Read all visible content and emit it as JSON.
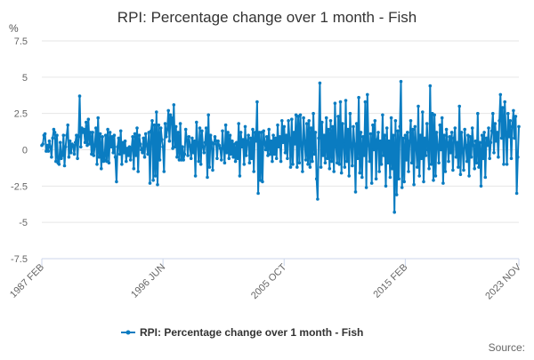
{
  "chart_data": {
    "type": "line",
    "title": "RPI: Percentage change over 1 month - Fish",
    "ylabel": "%",
    "xlabel": "",
    "ylim": [
      -7.5,
      7.5
    ],
    "yticks": [
      "7.5",
      "5",
      "2.5",
      "0",
      "-2.5",
      "-5",
      "-7.5"
    ],
    "xticks": [
      "1987 FEB",
      "1996 JUN",
      "2005 OCT",
      "2015 FEB",
      "2023 NOV"
    ],
    "x_start": "1987 FEB",
    "x_end": "2023 NOV",
    "frequency": "monthly",
    "grid": true,
    "legend_position": "bottom",
    "credit": "Source:",
    "colors": {
      "series": "#0a7cc1",
      "grid": "#e6e6e6",
      "text": "#333333"
    },
    "series": [
      {
        "name": "RPI: Percentage change over 1 month - Fish",
        "values": [
          0.3,
          0.4,
          1.0,
          1.1,
          -0.1,
          0.3,
          -0.1,
          0.6,
          0.2,
          -0.5,
          0.8,
          1.4,
          1.2,
          -0.8,
          1.0,
          -0.9,
          -1.0,
          0.5,
          -0.6,
          -0.4,
          1.0,
          -1.1,
          0.2,
          1.0,
          1.7,
          -0.5,
          0.6,
          -0.2,
          0.4,
          0.3,
          -0.3,
          0.5,
          1.0,
          -0.6,
          0.9,
          3.7,
          0.2,
          1.5,
          1.2,
          1.4,
          0.5,
          1.9,
          0.3,
          2.1,
          0.4,
          1.2,
          -0.3,
          1.2,
          -0.4,
          0.3,
          1.5,
          -1.0,
          2.2,
          -0.5,
          1.1,
          -1.3,
          0.9,
          -0.8,
          -0.7,
          1.0,
          -0.8,
          1.4,
          -0.9,
          1.2,
          0.2,
          0.9,
          -0.2,
          1.0,
          -0.5,
          -2.2,
          0.2,
          0.8,
          -0.3,
          1.3,
          -1.0,
          0.5,
          -0.2,
          0.6,
          -0.8,
          0.1,
          -0.4,
          0.2,
          -0.7,
          0.1,
          0.9,
          -1.3,
          1.1,
          -0.4,
          1.5,
          -1.5,
          1.0,
          0.4,
          0.0,
          -0.2,
          0.8,
          -0.5,
          1.1,
          0.3,
          -0.3,
          1.2,
          -2.3,
          1.3,
          2.0,
          -2.1,
          1.7,
          -1.8,
          2.6,
          -2.4,
          1.7,
          -0.7,
          1.5,
          0.7,
          0.2,
          -1.5,
          1.8,
          0.9,
          1.4,
          2.7,
          0.6,
          2.4,
          2.2,
          0.1,
          3.1,
          0.2,
          1.6,
          -0.5,
          1.2,
          -0.7,
          1.8,
          -0.7,
          0.2,
          -0.7,
          -0.3,
          1.4,
          0.7,
          -0.4,
          0.9,
          0.3,
          -0.6,
          0.8,
          -0.2,
          0.6,
          -1.8,
          1.9,
          0.5,
          -0.8,
          1.5,
          -1.0,
          1.3,
          0.2,
          -0.2,
          0.5,
          1.5,
          -1.9,
          2.4,
          -1.2,
          1.0,
          0.5,
          -1.4,
          0.4,
          0.9,
          0.6,
          -0.6,
          0.6,
          0.3,
          0.1,
          -0.7,
          1.3,
          0.1,
          -0.9,
          1.7,
          -0.2,
          1.2,
          -0.6,
          1.0,
          -0.3,
          0.6,
          -0.5,
          0.4,
          -0.8,
          0.5,
          -0.6,
          1.8,
          -1.8,
          1.2,
          0.2,
          0.7,
          -1.0,
          1.6,
          -0.4,
          0.6,
          1.0,
          -0.9,
          0.8,
          -0.6,
          1.4,
          -1.5,
          1.2,
          0.6,
          3.3,
          -3.0,
          1.2,
          -2.1,
          1.2,
          -2.2,
          1.3,
          0.5,
          0.0,
          0.9,
          -0.4,
          1.4,
          -0.3,
          0.6,
          -0.8,
          1.0,
          -0.3,
          0.8,
          -0.6,
          1.7,
          0.2,
          0.9,
          -0.8,
          2.0,
          0.5,
          1.6,
          -0.2,
          1.0,
          -0.6,
          2.0,
          0.8,
          -1.2,
          2.1,
          -1.0,
          1.2,
          0.4,
          2.4,
          -1.2,
          2.3,
          -0.9,
          2.4,
          0.3,
          -1.5,
          2.2,
          0.6,
          -0.7,
          1.8,
          -1.0,
          2.0,
          -1.2,
          1.5,
          -0.8,
          2.5,
          -0.3,
          1.2,
          -2.0,
          -3.4,
          0.8,
          4.6,
          -1.2,
          1.9,
          -0.4,
          1.0,
          -0.9,
          2.2,
          -0.6,
          1.4,
          -1.3,
          2.0,
          -0.8,
          1.6,
          -1.5,
          3.2,
          0.2,
          -0.9,
          2.3,
          -1.0,
          3.3,
          -1.6,
          1.8,
          0.4,
          -1.2,
          3.4,
          -0.8,
          1.4,
          -1.8,
          2.5,
          0.3,
          -1.1,
          1.6,
          0.4,
          -2.9,
          1.8,
          -0.6,
          3.6,
          -1.6,
          1.2,
          -1.9,
          0.9,
          -0.4,
          3.3,
          -2.6,
          3.8,
          0.3,
          -0.8,
          1.1,
          -2.3,
          1.7,
          0.0,
          2.0,
          -2.0,
          0.7,
          1.2,
          -1.5,
          0.6,
          -1.0,
          2.4,
          -0.4,
          1.0,
          -2.5,
          1.5,
          -0.9,
          0.6,
          -1.9,
          2.2,
          -1.3,
          1.0,
          -4.3,
          2.0,
          -3.1,
          1.3,
          -2.0,
          1.6,
          4.7,
          -2.6,
          0.8,
          -2.2,
          1.0,
          -0.7,
          1.2,
          -1.5,
          0.6,
          2.0,
          -0.9,
          1.4,
          -2.4,
          1.6,
          0.3,
          -1.2,
          3.0,
          -1.8,
          1.0,
          -0.6,
          2.6,
          -2.2,
          0.8,
          -0.4,
          1.8,
          0.0,
          -1.3,
          4.4,
          -1.0,
          2.5,
          -2.1,
          2.4,
          -1.8,
          1.2,
          0.3,
          -0.9,
          1.7,
          0.0,
          2.2,
          -2.3,
          1.0,
          -1.5,
          1.4,
          0.5,
          -0.8,
          0.9,
          -0.2,
          1.2,
          -1.4,
          0.8,
          1.5,
          -0.5,
          0.5,
          -1.2,
          3.0,
          -1.7,
          1.2,
          0.0,
          -1.4,
          1.4,
          0.3,
          -0.8,
          1.0,
          -1.8,
          0.9,
          -0.5,
          1.5,
          0.3,
          -1.3,
          0.6,
          -0.9,
          2.5,
          -1.2,
          0.5,
          -2.5,
          1.0,
          -0.6,
          1.2,
          -1.9,
          0.8,
          0.3,
          1.5,
          -0.6,
          0.5,
          1.3,
          2.5,
          -0.2,
          1.8,
          0.6,
          1.2,
          -0.5,
          2.0,
          3.8,
          0.8,
          2.9,
          -1.0,
          3.3,
          1.2,
          -1.0,
          2.5,
          0.9,
          2.0,
          -0.6,
          1.6,
          2.7,
          0.8,
          2.3,
          -3.0,
          -0.5,
          1.6
        ]
      }
    ]
  }
}
